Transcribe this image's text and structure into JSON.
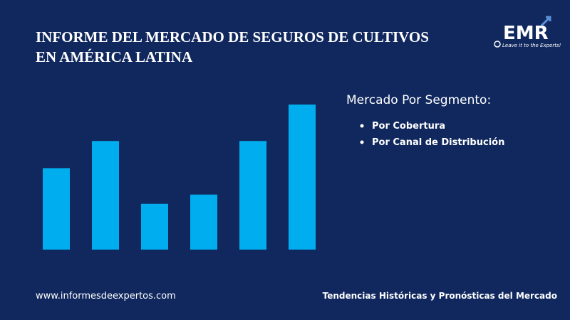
{
  "header": {
    "title_lines": [
      "INFORME DEL MERCADO DE SEGUROS DE CULTIVOS",
      "EN AMÉRICA LATINA"
    ],
    "logo": "EMR",
    "logo_tagline": "Leave it to the Experts!"
  },
  "chart_data": {
    "type": "bar",
    "categories": [
      null,
      null,
      null,
      null,
      null,
      null
    ],
    "values": [
      114,
      152,
      64,
      77,
      152,
      203
    ],
    "color": "#00aeef",
    "ylim": [
      0,
      210
    ]
  },
  "segments": {
    "heading": "Mercado Por Segmento:",
    "items": [
      "Por Cobertura",
      "Por Canal de Distribución"
    ]
  },
  "footer": {
    "website": "www.informesdeexpertos.com",
    "tagline": "Tendencias Históricas y Pronósticas del Mercado"
  }
}
